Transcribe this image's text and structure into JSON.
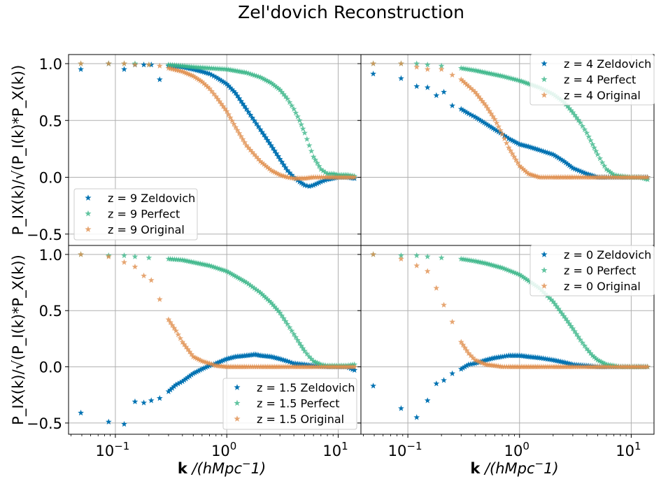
{
  "figure": {
    "title": "Zel'dovich Reconstruction",
    "xlabel_bold": "k",
    "xlabel_rest": " /(hMpc",
    "xlabel_sup": "−",
    "xlabel_end": "1)",
    "ylabel": "P_IX(k)/√(P_I(k)*P_X(k))",
    "ytick_labels": [
      "−0.5",
      "0.0",
      "0.5",
      "1.0"
    ],
    "xtick_labels": [
      "10",
      "−1",
      "10",
      "0",
      "10",
      "1"
    ]
  },
  "colors": {
    "zeldovich": "#0072B2",
    "perfect": "#3CB68A",
    "original": "#E08F4E",
    "grid": "#b0b0b0"
  },
  "chart_data": [
    {
      "type": "scatter",
      "panel": "top-left",
      "xscale": "log",
      "xlim": [
        0.038,
        16
      ],
      "ylim": [
        -0.6,
        1.08
      ],
      "grid": true,
      "legend_position": "lower-left",
      "marker": "star",
      "series": [
        {
          "name": "z = 9  Zeldovich",
          "label_z": "z = 9",
          "label_kind": "Zeldovich",
          "color_key": "zeldovich",
          "x": [
            0.049,
            0.087,
            0.12,
            0.15,
            0.18,
            0.21,
            0.25,
            0.3,
            0.4,
            0.5,
            0.6,
            0.7,
            0.8,
            1.0,
            1.2,
            1.5,
            2.0,
            2.5,
            3.0,
            3.5,
            4.0,
            4.5,
            5.0,
            5.5,
            6.0,
            7.0,
            8.0,
            10.0,
            12.0,
            14.0
          ],
          "y": [
            0.95,
            1.0,
            0.95,
            0.99,
            0.99,
            0.99,
            0.86,
            0.98,
            0.97,
            0.95,
            0.93,
            0.91,
            0.88,
            0.82,
            0.74,
            0.6,
            0.42,
            0.28,
            0.16,
            0.06,
            0.0,
            -0.04,
            -0.07,
            -0.08,
            -0.07,
            -0.04,
            -0.02,
            0.0,
            0.0,
            -0.01
          ]
        },
        {
          "name": "z = 9  Perfect",
          "label_z": "z = 9",
          "label_kind": "Perfect",
          "color_key": "perfect",
          "x": [
            0.049,
            0.087,
            0.12,
            0.15,
            0.2,
            0.3,
            0.4,
            0.5,
            0.7,
            1.0,
            1.5,
            2.0,
            2.5,
            3.0,
            3.5,
            4.0,
            4.5,
            5.0,
            5.5,
            6.0,
            7.0,
            8.0,
            9.0,
            10.0,
            12.0,
            14.0
          ],
          "y": [
            1.0,
            1.0,
            1.0,
            1.0,
            0.99,
            0.99,
            0.98,
            0.97,
            0.96,
            0.95,
            0.92,
            0.88,
            0.83,
            0.77,
            0.69,
            0.6,
            0.5,
            0.39,
            0.28,
            0.18,
            0.07,
            0.03,
            0.03,
            0.02,
            0.02,
            0.01
          ]
        },
        {
          "name": "z = 9  Original",
          "label_z": "z = 9",
          "label_kind": "Original",
          "color_key": "original",
          "x": [
            0.049,
            0.087,
            0.12,
            0.15,
            0.2,
            0.25,
            0.3,
            0.4,
            0.5,
            0.6,
            0.7,
            0.8,
            1.0,
            1.2,
            1.5,
            2.0,
            2.5,
            3.0,
            3.5,
            4.0,
            5.0,
            6.0,
            8.0,
            10.0,
            12.0,
            14.0
          ],
          "y": [
            1.0,
            1.0,
            1.0,
            0.99,
            0.99,
            0.98,
            0.96,
            0.93,
            0.89,
            0.84,
            0.78,
            0.71,
            0.58,
            0.44,
            0.28,
            0.14,
            0.06,
            0.02,
            0.0,
            -0.01,
            -0.01,
            0.0,
            0.0,
            0.0,
            0.0,
            0.0
          ]
        }
      ]
    },
    {
      "type": "scatter",
      "panel": "top-right",
      "xscale": "log",
      "xlim": [
        0.038,
        16
      ],
      "ylim": [
        -0.6,
        1.08
      ],
      "grid": true,
      "legend_position": "upper-right",
      "marker": "star",
      "series": [
        {
          "name": "z = 4  Zeldovich",
          "label_z": "z = 4",
          "label_kind": "Zeldovich",
          "color_key": "zeldovich",
          "x": [
            0.049,
            0.087,
            0.12,
            0.15,
            0.18,
            0.21,
            0.25,
            0.3,
            0.35,
            0.4,
            0.5,
            0.6,
            0.7,
            0.8,
            1.0,
            1.2,
            1.5,
            2.0,
            2.5,
            3.0,
            4.0,
            5.0,
            6.0,
            8.0,
            10.0,
            12.0,
            14.0
          ],
          "y": [
            0.91,
            0.87,
            0.8,
            0.79,
            0.72,
            0.75,
            0.63,
            0.6,
            0.56,
            0.53,
            0.47,
            0.42,
            0.38,
            0.34,
            0.29,
            0.27,
            0.24,
            0.2,
            0.14,
            0.08,
            0.03,
            0.0,
            0.0,
            0.0,
            0.0,
            0.0,
            0.0
          ]
        },
        {
          "name": "z = 4  Perfect",
          "label_z": "z = 4",
          "label_kind": "Perfect",
          "color_key": "perfect",
          "x": [
            0.049,
            0.087,
            0.12,
            0.15,
            0.2,
            0.3,
            0.4,
            0.5,
            0.7,
            1.0,
            1.5,
            2.0,
            2.5,
            3.0,
            3.5,
            4.0,
            4.5,
            5.0,
            5.5,
            6.0,
            7.0,
            8.0,
            10.0,
            12.0,
            14.0
          ],
          "y": [
            1.0,
            1.0,
            1.0,
            0.99,
            0.98,
            0.96,
            0.94,
            0.92,
            0.89,
            0.85,
            0.79,
            0.73,
            0.66,
            0.57,
            0.48,
            0.39,
            0.29,
            0.2,
            0.13,
            0.07,
            0.02,
            0.01,
            0.0,
            0.0,
            -0.02
          ]
        },
        {
          "name": "z = 4  Original",
          "label_z": "z = 4",
          "label_kind": "Original",
          "color_key": "original",
          "x": [
            0.049,
            0.087,
            0.12,
            0.15,
            0.2,
            0.25,
            0.3,
            0.35,
            0.4,
            0.5,
            0.6,
            0.7,
            0.8,
            1.0,
            1.2,
            1.5,
            2.0,
            2.5,
            3.0,
            4.0,
            5.0,
            6.0,
            8.0,
            10.0,
            12.0,
            14.0
          ],
          "y": [
            1.0,
            1.0,
            0.97,
            0.95,
            0.95,
            0.9,
            0.86,
            0.8,
            0.75,
            0.63,
            0.51,
            0.38,
            0.26,
            0.1,
            0.03,
            0.0,
            0.0,
            0.0,
            0.0,
            0.0,
            0.0,
            0.0,
            0.0,
            0.0,
            0.0,
            0.0
          ]
        }
      ]
    },
    {
      "type": "scatter",
      "panel": "bottom-left",
      "xscale": "log",
      "xlim": [
        0.038,
        16
      ],
      "ylim": [
        -0.6,
        1.08
      ],
      "grid": true,
      "legend_position": "lower-right",
      "marker": "star",
      "series": [
        {
          "name": "z = 1.5  Zeldovich",
          "label_z": "z = 1.5",
          "label_kind": "Zeldovich",
          "color_key": "zeldovich",
          "x": [
            0.049,
            0.087,
            0.12,
            0.15,
            0.18,
            0.21,
            0.25,
            0.3,
            0.35,
            0.4,
            0.5,
            0.6,
            0.7,
            0.8,
            1.0,
            1.2,
            1.5,
            1.8,
            2.0,
            2.5,
            3.0,
            3.5,
            4.0,
            5.0,
            6.0,
            8.0,
            10.0,
            12.0,
            14.0
          ],
          "y": [
            -0.41,
            -0.49,
            -0.51,
            -0.31,
            -0.32,
            -0.3,
            -0.28,
            -0.22,
            -0.16,
            -0.13,
            -0.06,
            -0.02,
            0.01,
            0.03,
            0.07,
            0.09,
            0.1,
            0.11,
            0.1,
            0.09,
            0.07,
            0.05,
            0.03,
            0.02,
            0.01,
            0.0,
            0.0,
            0.0,
            -0.03
          ]
        },
        {
          "name": "z = 1.5  Perfect",
          "label_z": "z = 1.5",
          "label_kind": "Perfect",
          "color_key": "perfect",
          "x": [
            0.049,
            0.087,
            0.12,
            0.15,
            0.2,
            0.3,
            0.4,
            0.5,
            0.7,
            1.0,
            1.5,
            2.0,
            2.5,
            3.0,
            3.5,
            4.0,
            4.5,
            5.0,
            5.5,
            6.0,
            7.0,
            8.0,
            10.0,
            12.0,
            14.0
          ],
          "y": [
            1.0,
            0.99,
            0.99,
            0.98,
            0.97,
            0.96,
            0.95,
            0.93,
            0.9,
            0.85,
            0.75,
            0.66,
            0.57,
            0.48,
            0.38,
            0.29,
            0.21,
            0.14,
            0.09,
            0.05,
            0.02,
            0.01,
            0.01,
            0.01,
            0.02
          ]
        },
        {
          "name": "z = 1.5  Original",
          "label_z": "z = 1.5",
          "label_kind": "Original",
          "color_key": "original",
          "x": [
            0.049,
            0.087,
            0.12,
            0.15,
            0.18,
            0.21,
            0.25,
            0.3,
            0.35,
            0.4,
            0.5,
            0.6,
            0.7,
            0.8,
            1.0,
            1.2,
            1.5,
            2.0,
            3.0,
            4.0,
            6.0,
            8.0,
            10.0,
            14.0
          ],
          "y": [
            1.0,
            0.98,
            0.93,
            0.89,
            0.81,
            0.77,
            0.6,
            0.42,
            0.32,
            0.22,
            0.09,
            0.05,
            0.03,
            0.01,
            0.0,
            0.0,
            0.0,
            0.0,
            0.0,
            0.0,
            0.0,
            0.0,
            0.0,
            0.0
          ]
        }
      ]
    },
    {
      "type": "scatter",
      "panel": "bottom-right",
      "xscale": "log",
      "xlim": [
        0.038,
        16
      ],
      "ylim": [
        -0.6,
        1.08
      ],
      "grid": true,
      "legend_position": "upper-right",
      "marker": "star",
      "series": [
        {
          "name": "z = 0  Zeldovich",
          "label_z": "z = 0",
          "label_kind": "Zeldovich",
          "color_key": "zeldovich",
          "x": [
            0.049,
            0.087,
            0.12,
            0.15,
            0.18,
            0.21,
            0.25,
            0.3,
            0.35,
            0.4,
            0.5,
            0.6,
            0.7,
            0.8,
            1.0,
            1.2,
            1.5,
            2.0,
            2.5,
            3.0,
            4.0,
            5.0,
            6.0,
            8.0,
            10.0,
            12.0,
            14.0
          ],
          "y": [
            -0.17,
            -0.37,
            -0.45,
            -0.3,
            -0.15,
            -0.12,
            -0.06,
            -0.02,
            0.02,
            0.03,
            0.06,
            0.08,
            0.09,
            0.1,
            0.1,
            0.09,
            0.08,
            0.06,
            0.04,
            0.02,
            0.01,
            0.0,
            0.0,
            0.0,
            0.0,
            0.0,
            0.0
          ]
        },
        {
          "name": "z = 0  Perfect",
          "label_z": "z = 0",
          "label_kind": "Perfect",
          "color_key": "perfect",
          "x": [
            0.049,
            0.087,
            0.12,
            0.15,
            0.2,
            0.3,
            0.4,
            0.5,
            0.7,
            1.0,
            1.5,
            2.0,
            2.5,
            3.0,
            3.5,
            4.0,
            4.5,
            5.0,
            6.0,
            7.0,
            8.0,
            10.0,
            12.0,
            14.0
          ],
          "y": [
            1.0,
            0.99,
            0.99,
            0.98,
            0.97,
            0.96,
            0.94,
            0.92,
            0.88,
            0.82,
            0.7,
            0.58,
            0.45,
            0.34,
            0.24,
            0.16,
            0.1,
            0.06,
            0.02,
            0.01,
            0.0,
            0.0,
            0.0,
            0.0
          ]
        },
        {
          "name": "z = 0  Original",
          "label_z": "z = 0",
          "label_kind": "Original",
          "color_key": "original",
          "x": [
            0.049,
            0.087,
            0.12,
            0.15,
            0.18,
            0.21,
            0.25,
            0.3,
            0.35,
            0.4,
            0.5,
            0.6,
            0.7,
            0.8,
            1.0,
            1.5,
            2.0,
            3.0,
            4.0,
            6.0,
            8.0,
            10.0,
            14.0
          ],
          "y": [
            1.0,
            0.96,
            0.9,
            0.85,
            0.7,
            0.55,
            0.4,
            0.22,
            0.12,
            0.06,
            0.02,
            0.01,
            0.0,
            0.0,
            0.0,
            0.0,
            0.0,
            0.0,
            0.0,
            0.0,
            0.0,
            0.0,
            0.0
          ]
        }
      ]
    }
  ]
}
